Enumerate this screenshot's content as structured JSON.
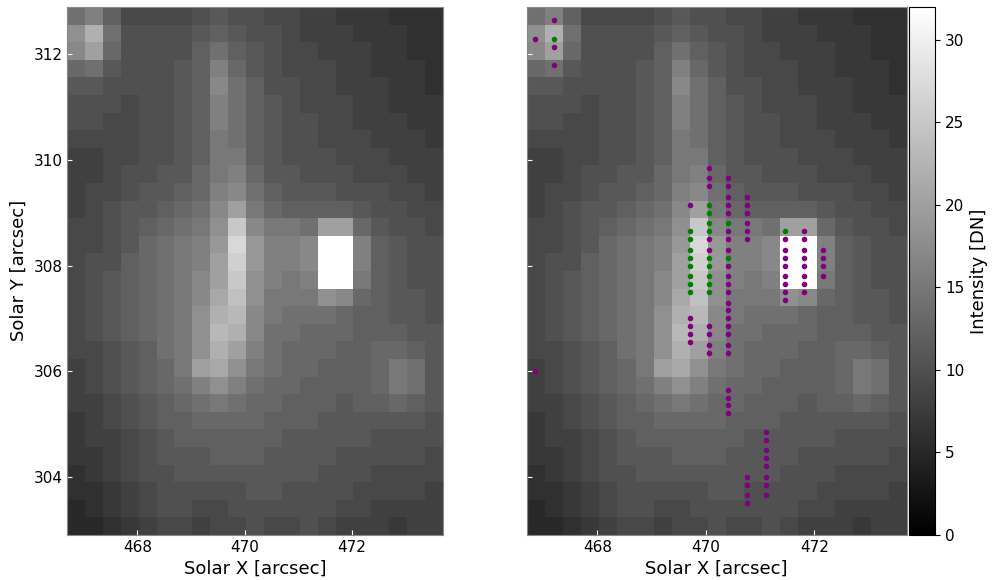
{
  "chart_data": {
    "type": "heatmap",
    "xlabel": "Solar X [arcsec]",
    "ylabel": "Solar Y [arcsec]",
    "xlim": [
      466.7,
      473.7
    ],
    "ylim": [
      302.9,
      312.9
    ],
    "xticks": [
      468,
      470,
      472
    ],
    "yticks": [
      304,
      306,
      308,
      310,
      312
    ],
    "colorbar": {
      "label": "Intensity [DN]",
      "range": [
        0,
        32
      ],
      "ticks": [
        0,
        5,
        10,
        15,
        20,
        25,
        30
      ]
    },
    "cells": [
      [
        5,
        5,
        6,
        7,
        8,
        9,
        9,
        8,
        9,
        9,
        10,
        9,
        9,
        10,
        9,
        8,
        8,
        8,
        7,
        8,
        8
      ],
      [
        5,
        6,
        7,
        8,
        9,
        10,
        10,
        9,
        9,
        10,
        10,
        10,
        10,
        10,
        10,
        9,
        9,
        8,
        8,
        8,
        8
      ],
      [
        6,
        6,
        7,
        8,
        9,
        10,
        10,
        10,
        10,
        10,
        11,
        11,
        10,
        10,
        10,
        10,
        9,
        9,
        9,
        9,
        8
      ],
      [
        6,
        7,
        8,
        9,
        10,
        10,
        11,
        11,
        11,
        11,
        11,
        11,
        11,
        11,
        10,
        10,
        10,
        9,
        9,
        9,
        9
      ],
      [
        7,
        7,
        8,
        9,
        10,
        11,
        11,
        11,
        12,
        12,
        12,
        11,
        11,
        11,
        11,
        10,
        10,
        10,
        10,
        10,
        9
      ],
      [
        7,
        8,
        8,
        9,
        10,
        11,
        12,
        12,
        12,
        12,
        12,
        12,
        11,
        11,
        11,
        11,
        11,
        10,
        10,
        10,
        10
      ],
      [
        7,
        8,
        9,
        10,
        11,
        12,
        12,
        13,
        13,
        13,
        13,
        12,
        12,
        12,
        11,
        11,
        11,
        11,
        11,
        11,
        10
      ],
      [
        8,
        8,
        9,
        10,
        11,
        12,
        13,
        14,
        15,
        14,
        13,
        13,
        12,
        12,
        12,
        11,
        12,
        12,
        13,
        12,
        11
      ],
      [
        8,
        9,
        10,
        11,
        12,
        13,
        14,
        16,
        18,
        16,
        14,
        13,
        13,
        12,
        12,
        12,
        12,
        13,
        15,
        14,
        11
      ],
      [
        8,
        9,
        10,
        11,
        12,
        13,
        15,
        20,
        21,
        18,
        15,
        14,
        13,
        13,
        12,
        12,
        12,
        13,
        15,
        14,
        11
      ],
      [
        9,
        9,
        10,
        11,
        12,
        14,
        15,
        18,
        22,
        20,
        16,
        14,
        13,
        13,
        13,
        12,
        12,
        13,
        13,
        12,
        11
      ],
      [
        9,
        10,
        11,
        12,
        13,
        14,
        15,
        18,
        23,
        22,
        17,
        14,
        14,
        13,
        13,
        13,
        12,
        12,
        12,
        11,
        11
      ],
      [
        9,
        10,
        11,
        12,
        13,
        14,
        15,
        18,
        22,
        23,
        17,
        15,
        14,
        14,
        14,
        13,
        12,
        12,
        11,
        11,
        10
      ],
      [
        9,
        10,
        11,
        12,
        13,
        14,
        15,
        17,
        21,
        24,
        18,
        15,
        15,
        15,
        18,
        17,
        13,
        12,
        11,
        11,
        10
      ],
      [
        9,
        10,
        11,
        12,
        13,
        14,
        15,
        17,
        20,
        25,
        18,
        16,
        15,
        16,
        32,
        32,
        15,
        12,
        11,
        10,
        10
      ],
      [
        9,
        10,
        10,
        12,
        13,
        14,
        15,
        16,
        20,
        26,
        19,
        16,
        16,
        17,
        32,
        32,
        16,
        12,
        11,
        10,
        10
      ],
      [
        9,
        9,
        10,
        11,
        13,
        14,
        15,
        16,
        19,
        27,
        19,
        16,
        16,
        17,
        32,
        32,
        16,
        12,
        11,
        10,
        10
      ],
      [
        9,
        9,
        10,
        11,
        12,
        13,
        14,
        15,
        18,
        25,
        17,
        15,
        15,
        14,
        20,
        20,
        13,
        11,
        10,
        10,
        9
      ],
      [
        8,
        9,
        10,
        11,
        11,
        12,
        13,
        14,
        17,
        20,
        15,
        13,
        12,
        12,
        12,
        12,
        11,
        10,
        10,
        9,
        9
      ],
      [
        8,
        9,
        9,
        10,
        11,
        11,
        12,
        13,
        16,
        17,
        14,
        12,
        11,
        11,
        11,
        10,
        10,
        10,
        9,
        9,
        8
      ],
      [
        8,
        8,
        9,
        10,
        10,
        11,
        11,
        13,
        15,
        16,
        13,
        11,
        11,
        10,
        10,
        10,
        9,
        9,
        9,
        8,
        8
      ],
      [
        8,
        8,
        9,
        9,
        10,
        10,
        11,
        12,
        15,
        15,
        12,
        11,
        10,
        10,
        10,
        9,
        9,
        9,
        8,
        8,
        8
      ],
      [
        9,
        9,
        9,
        9,
        10,
        10,
        11,
        12,
        15,
        14,
        12,
        11,
        10,
        10,
        9,
        9,
        9,
        8,
        8,
        8,
        7
      ],
      [
        10,
        10,
        9,
        9,
        10,
        10,
        11,
        12,
        16,
        14,
        12,
        11,
        10,
        10,
        9,
        9,
        8,
        8,
        8,
        7,
        7
      ],
      [
        10,
        10,
        10,
        9,
        10,
        10,
        11,
        12,
        16,
        14,
        12,
        11,
        10,
        9,
        9,
        9,
        8,
        8,
        7,
        7,
        7
      ],
      [
        11,
        11,
        10,
        10,
        10,
        10,
        11,
        12,
        17,
        14,
        12,
        10,
        10,
        9,
        9,
        8,
        8,
        8,
        7,
        7,
        6
      ],
      [
        13,
        14,
        11,
        10,
        10,
        10,
        11,
        12,
        16,
        13,
        11,
        10,
        9,
        9,
        9,
        8,
        8,
        7,
        7,
        7,
        6
      ],
      [
        17,
        20,
        13,
        10,
        10,
        10,
        10,
        12,
        14,
        12,
        11,
        10,
        9,
        9,
        8,
        8,
        8,
        7,
        7,
        6,
        6
      ],
      [
        18,
        22,
        14,
        10,
        10,
        10,
        10,
        11,
        12,
        11,
        10,
        10,
        9,
        8,
        8,
        8,
        7,
        7,
        7,
        6,
        6
      ],
      [
        14,
        16,
        12,
        9,
        9,
        9,
        9,
        10,
        11,
        10,
        10,
        9,
        9,
        8,
        8,
        7,
        7,
        7,
        6,
        6,
        6
      ]
    ],
    "series": [
      {
        "type": "scatter",
        "marker": "o",
        "color": "#800080",
        "x": [
          467.2,
          466.85,
          467.2,
          467.2,
          466.85,
          469.7,
          469.7,
          469.7,
          469.7,
          469.7,
          470.05,
          470.05,
          470.05,
          470.05,
          470.05,
          470.05,
          470.05,
          470.05,
          470.05,
          470.4,
          470.4,
          470.4,
          470.4,
          470.4,
          470.4,
          470.4,
          470.4,
          470.4,
          470.4,
          470.4,
          470.4,
          470.4,
          470.4,
          470.4,
          470.4,
          470.4,
          470.4,
          470.4,
          470.4,
          470.4,
          470.4,
          470.4,
          470.75,
          470.75,
          470.75,
          470.75,
          470.75,
          470.75,
          470.75,
          470.75,
          470.75,
          470.75,
          471.1,
          471.1,
          471.1,
          471.1,
          471.1,
          471.1,
          471.1,
          471.1,
          471.45,
          471.45,
          471.45,
          471.45,
          471.45,
          471.45,
          471.45,
          471.45,
          471.8,
          471.8,
          471.8,
          471.8,
          471.8,
          471.8,
          471.8,
          471.8,
          472.15,
          472.15,
          472.15,
          472.15
        ],
        "y": [
          312.65,
          312.3,
          312.15,
          311.8,
          306.0,
          309.15,
          307.0,
          306.85,
          306.7,
          306.55,
          309.85,
          309.65,
          309.5,
          308.5,
          308.3,
          306.85,
          306.7,
          306.5,
          306.35,
          309.65,
          309.5,
          309.3,
          309.15,
          309.0,
          308.65,
          308.5,
          308.3,
          308.0,
          307.8,
          307.65,
          307.5,
          307.3,
          307.15,
          307.0,
          306.85,
          306.7,
          306.5,
          306.35,
          305.65,
          305.5,
          305.35,
          305.2,
          309.3,
          309.15,
          309.0,
          308.8,
          308.65,
          308.5,
          304.0,
          303.85,
          303.65,
          303.5,
          304.85,
          304.7,
          304.5,
          304.35,
          304.2,
          304.0,
          303.85,
          303.65,
          308.5,
          308.3,
          308.15,
          308.0,
          307.8,
          307.65,
          307.5,
          307.35,
          308.65,
          308.5,
          308.3,
          308.15,
          308.0,
          307.8,
          307.65,
          307.5,
          308.3,
          308.15,
          308.0,
          307.8
        ]
      },
      {
        "type": "scatter",
        "marker": "o",
        "color": "#008000",
        "x": [
          467.2,
          469.7,
          469.7,
          469.7,
          469.7,
          469.7,
          469.7,
          469.7,
          469.7,
          470.05,
          470.05,
          470.05,
          470.05,
          470.05,
          470.05,
          470.05,
          470.05,
          470.05,
          470.4,
          470.4,
          471.45
        ],
        "y": [
          312.3,
          308.65,
          308.5,
          308.3,
          308.15,
          308.0,
          307.8,
          307.65,
          307.5,
          309.15,
          309.0,
          308.8,
          308.65,
          308.15,
          308.0,
          307.8,
          307.65,
          307.5,
          308.8,
          308.15,
          308.65
        ]
      }
    ]
  }
}
